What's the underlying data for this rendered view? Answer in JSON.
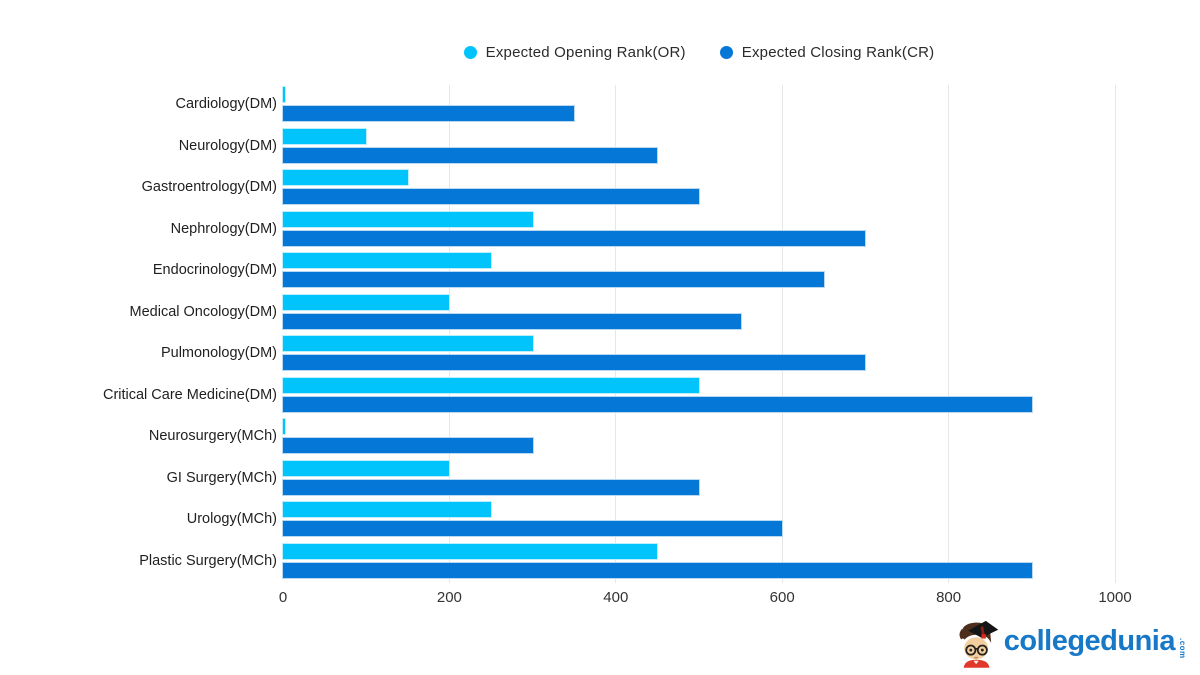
{
  "legend": {
    "items": [
      {
        "label": "Expected Opening Rank(OR)"
      },
      {
        "label": "Expected Closing Rank(CR)"
      }
    ]
  },
  "chart_data": {
    "type": "bar",
    "orientation": "horizontal",
    "title": "",
    "xlabel": "",
    "ylabel": "",
    "categories": [
      "Cardiology(DM)",
      "Neurology(DM)",
      "Gastroentrology(DM)",
      "Nephrology(DM)",
      "Endocrinology(DM)",
      "Medical Oncology(DM)",
      "Pulmonology(DM)",
      "Critical Care Medicine(DM)",
      "Neurosurgery(MCh)",
      "GI Surgery(MCh)",
      "Urology(MCh)",
      "Plastic Surgery(MCh)"
    ],
    "series": [
      {
        "name": "Expected Opening Rank(OR)",
        "color": "#00c4fb",
        "border_color": "#bdeefc",
        "values": [
          2,
          100,
          150,
          300,
          250,
          200,
          300,
          500,
          2,
          200,
          250,
          450
        ]
      },
      {
        "name": "Expected Closing Rank(CR)",
        "color": "#0577d6",
        "border_color": "#b9d8f2",
        "values": [
          350,
          450,
          500,
          700,
          650,
          550,
          700,
          900,
          300,
          500,
          600,
          900
        ]
      }
    ],
    "xlim": [
      0,
      1000
    ],
    "xticks": [
      0,
      200,
      400,
      600,
      800,
      1000
    ],
    "grid": "vertical",
    "grid_color": "#e7e7e7",
    "legend_position": "top"
  },
  "branding": {
    "logo_text": "collegedunia",
    "logo_suffix": ".com",
    "logo_color": "#1878c8"
  }
}
